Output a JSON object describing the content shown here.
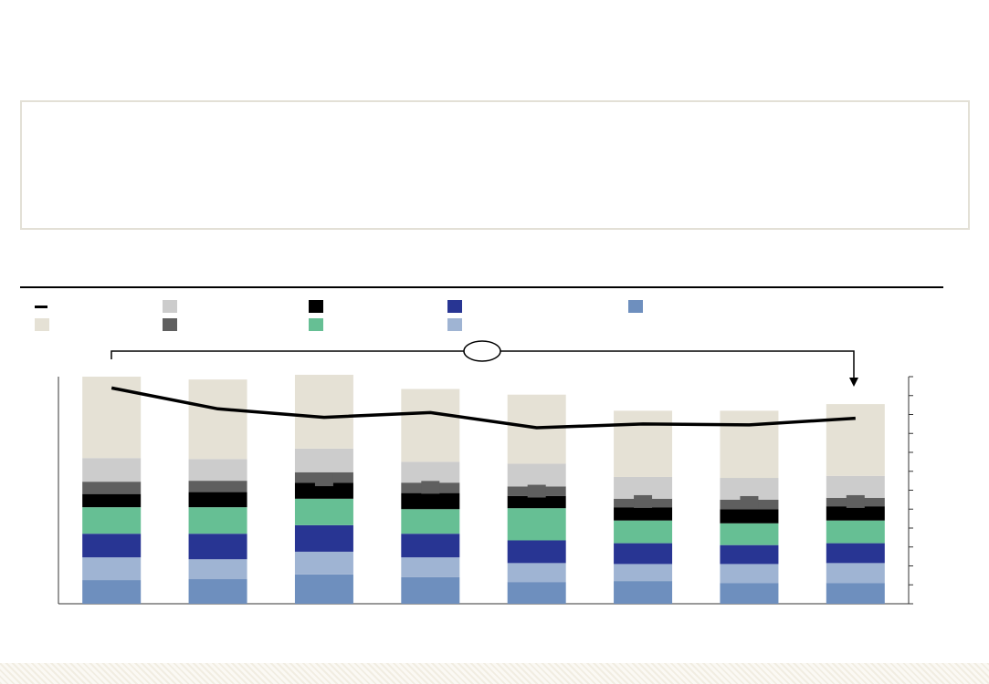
{
  "colors": {
    "border": "#e3e0d6",
    "rule": "#000000",
    "line": "#000000",
    "marker": "#5f5f5f",
    "axis": "#333333"
  },
  "legend": [
    {
      "row": 0,
      "col": 0,
      "kind": "line",
      "color": "#000000",
      "label": ""
    },
    {
      "row": 0,
      "col": 1,
      "kind": "box",
      "color": "#cccccc",
      "label": ""
    },
    {
      "row": 0,
      "col": 2,
      "kind": "box",
      "color": "#000000",
      "label": ""
    },
    {
      "row": 0,
      "col": 3,
      "kind": "box",
      "color": "#283593",
      "label": ""
    },
    {
      "row": 0,
      "col": 4,
      "kind": "box",
      "color": "#6e8fbe",
      "label": ""
    },
    {
      "row": 1,
      "col": 0,
      "kind": "box",
      "color": "#e5e1d5",
      "label": ""
    },
    {
      "row": 1,
      "col": 1,
      "kind": "box",
      "color": "#5f5f5f",
      "label": ""
    },
    {
      "row": 1,
      "col": 2,
      "kind": "box",
      "color": "#66bf94",
      "label": ""
    },
    {
      "row": 1,
      "col": 3,
      "kind": "box",
      "color": "#9fb4d3",
      "label": ""
    }
  ],
  "bracket_label": "",
  "chart_data": {
    "type": "bar",
    "stacked": true,
    "categories": [
      "",
      "",
      "",
      "",
      "",
      "",
      "",
      ""
    ],
    "ylim": [
      0,
      12
    ],
    "y2lim": [
      0,
      12
    ],
    "series": [
      {
        "color": "#6e8fbe",
        "values": [
          1.25,
          1.3,
          1.55,
          1.4,
          1.15,
          1.2,
          1.1,
          1.1
        ]
      },
      {
        "color": "#9fb4d3",
        "values": [
          1.2,
          1.05,
          1.2,
          1.05,
          1.0,
          0.9,
          1.0,
          1.05
        ]
      },
      {
        "color": "#283593",
        "values": [
          1.25,
          1.35,
          1.4,
          1.25,
          1.2,
          1.1,
          1.0,
          1.05
        ]
      },
      {
        "color": "#66bf94",
        "values": [
          1.4,
          1.4,
          1.4,
          1.3,
          1.7,
          1.2,
          1.15,
          1.2
        ]
      },
      {
        "color": "#000000",
        "values": [
          0.7,
          0.8,
          0.85,
          0.85,
          0.65,
          0.7,
          0.75,
          0.75
        ]
      },
      {
        "color": "#5f5f5f",
        "values": [
          0.65,
          0.6,
          0.55,
          0.55,
          0.5,
          0.45,
          0.5,
          0.45
        ]
      },
      {
        "color": "#cccccc",
        "values": [
          1.25,
          1.15,
          1.25,
          1.1,
          1.2,
          1.15,
          1.15,
          1.15
        ]
      },
      {
        "color": "#e5e1d5",
        "values": [
          4.3,
          4.2,
          3.9,
          3.85,
          3.65,
          3.5,
          3.55,
          3.8
        ]
      }
    ],
    "line": {
      "color": "#000000",
      "values": [
        11.4,
        10.3,
        9.85,
        10.1,
        9.3,
        9.5,
        9.45,
        9.8
      ]
    },
    "markers": {
      "color": "#5f5f5f",
      "values": [
        null,
        null,
        6.55,
        6.15,
        5.95,
        5.4,
        5.35,
        5.4
      ]
    }
  }
}
